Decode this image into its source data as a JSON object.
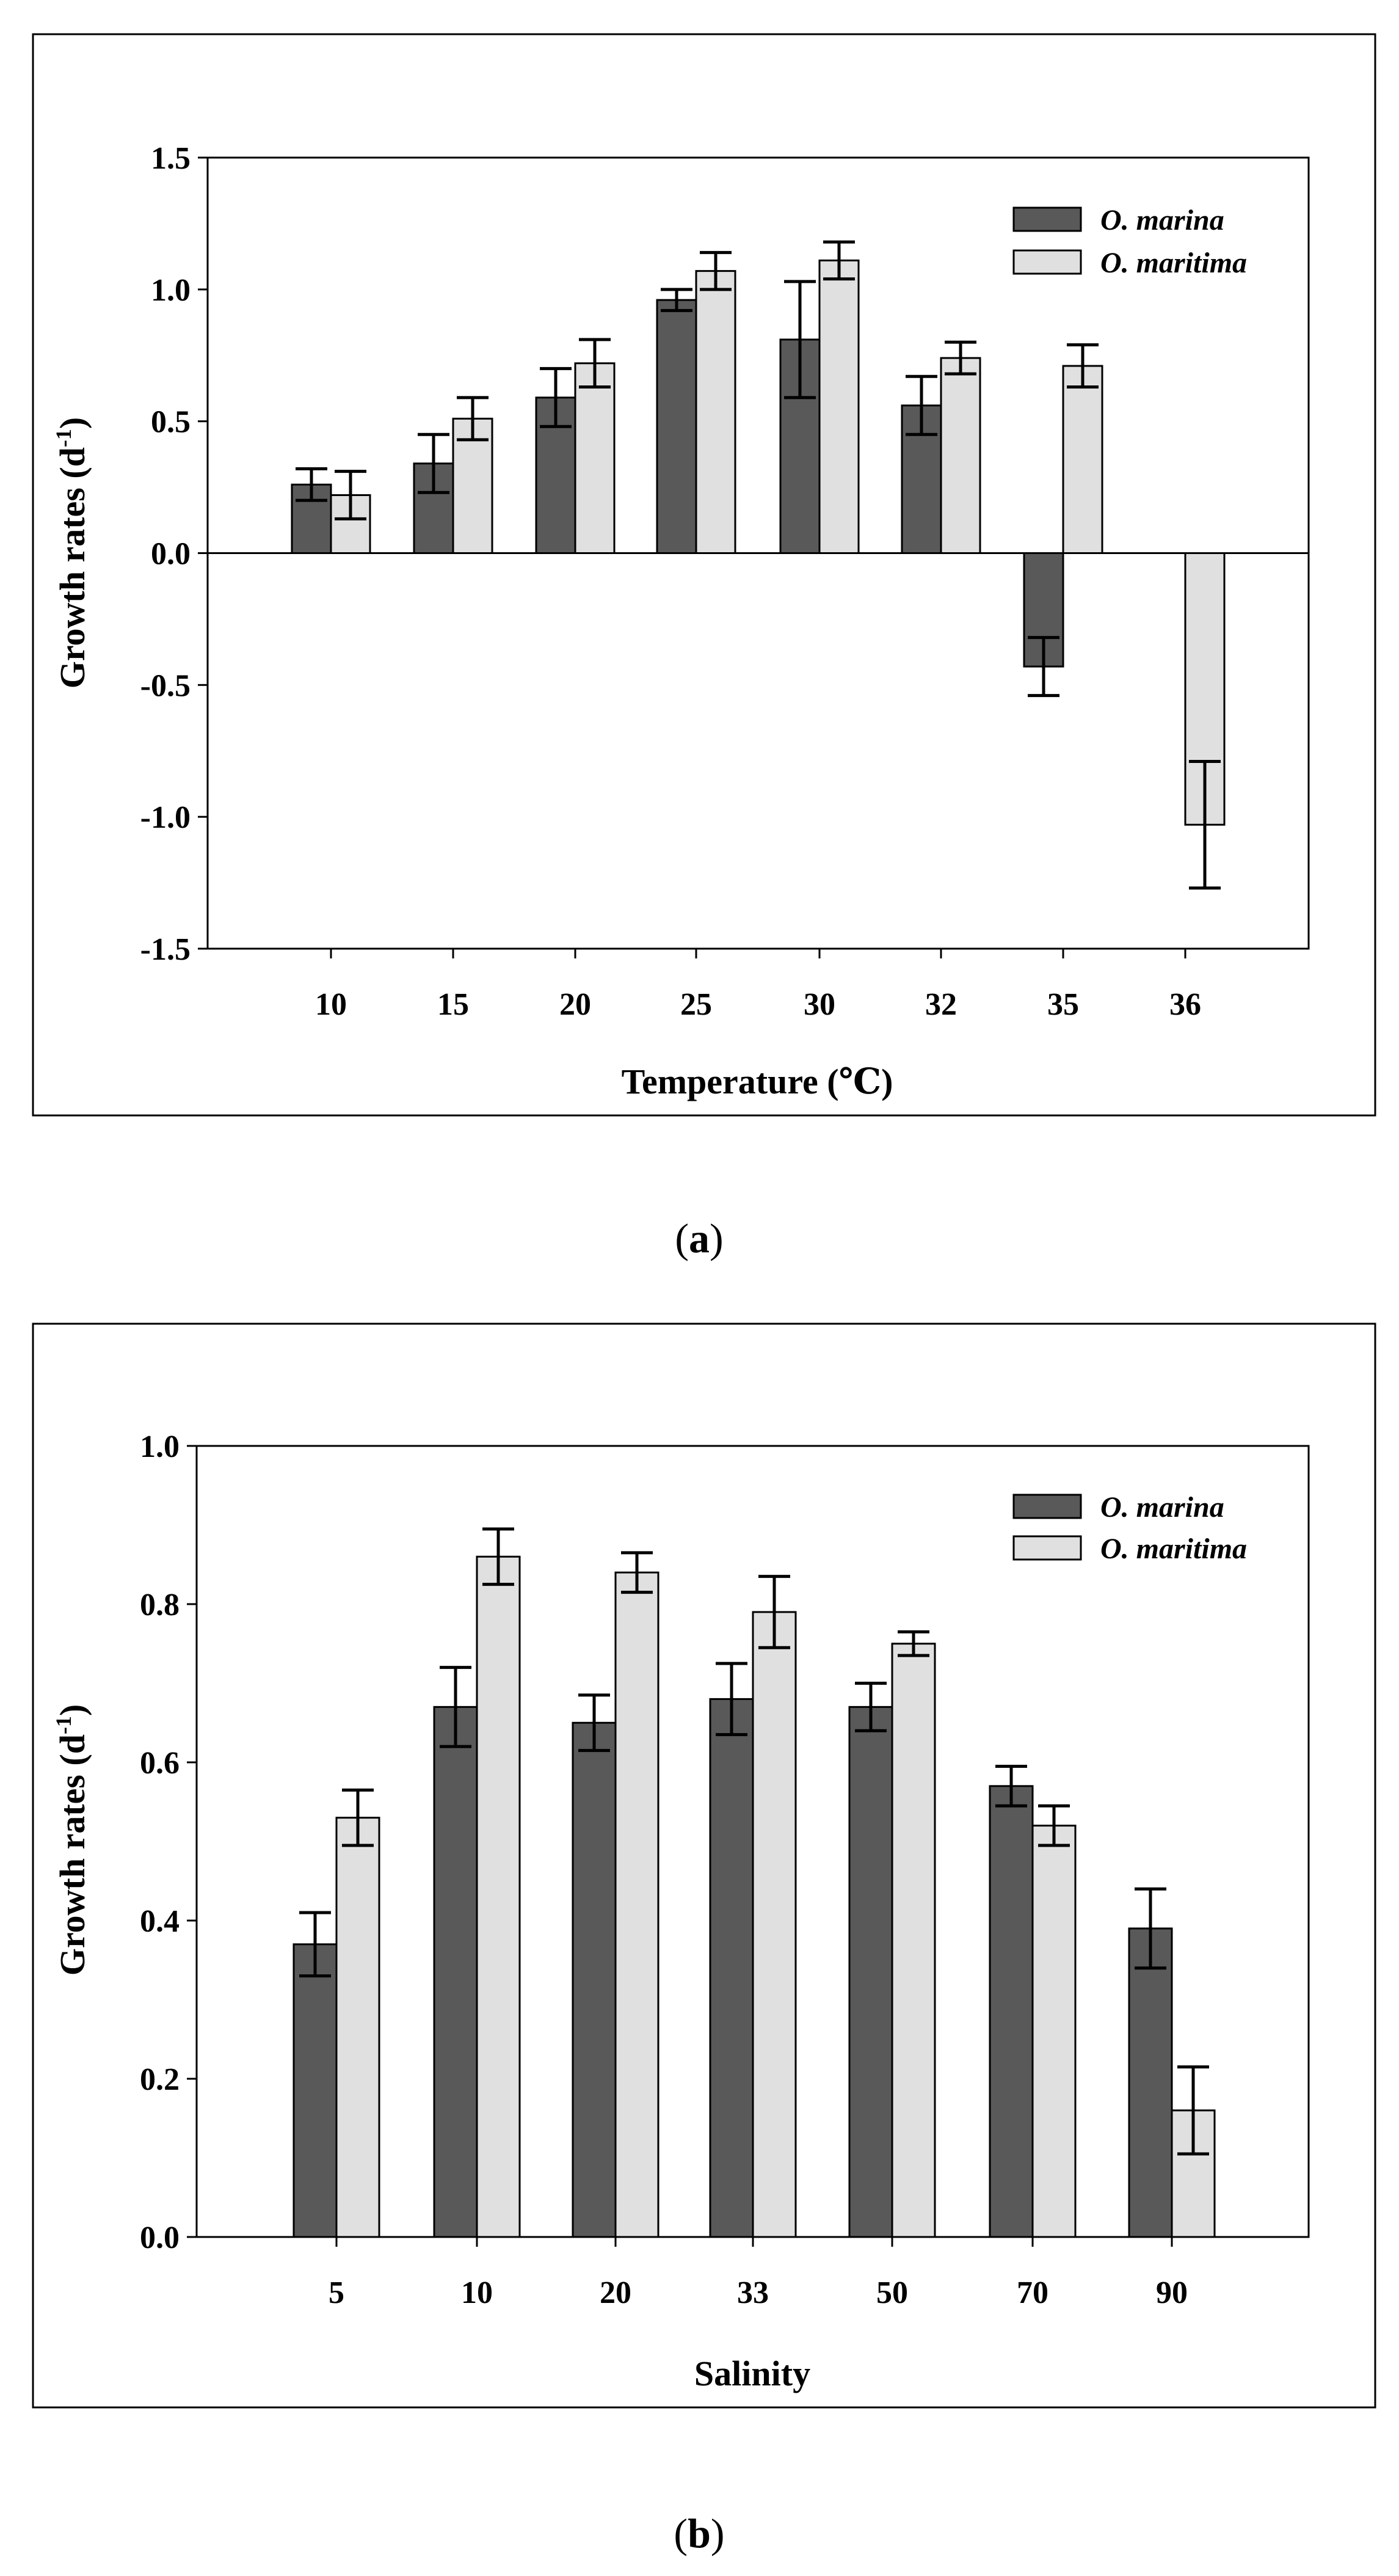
{
  "colors": {
    "series1": "#595959",
    "series2": "#e0e0e0",
    "edge": "#000000"
  },
  "chart_data": [
    {
      "type": "bar",
      "panel": "a",
      "categories": [
        "10",
        "15",
        "20",
        "25",
        "30",
        "32",
        "35",
        "36"
      ],
      "xlabel": "Temperature (℃)",
      "ylabel": "Growth rates (d",
      "ylabel_sup": "-1",
      "ylabel_end": ")",
      "ylim": [
        -1.5,
        1.5
      ],
      "yticks": [
        -1.5,
        -1.0,
        -0.5,
        0.0,
        0.5,
        1.0,
        1.5
      ],
      "ytick_labels": [
        "-1.5",
        "-1.0",
        "-0.5",
        "0.0",
        "0.5",
        "1.0",
        "1.5"
      ],
      "legend_position": "top-right",
      "series": [
        {
          "name": "O. marina",
          "values": [
            0.26,
            0.34,
            0.59,
            0.96,
            0.81,
            0.56,
            -0.43,
            null
          ],
          "errors": [
            0.06,
            0.11,
            0.11,
            0.04,
            0.22,
            0.11,
            0.11,
            null
          ]
        },
        {
          "name": "O. maritima",
          "values": [
            0.22,
            0.51,
            0.72,
            1.07,
            1.11,
            0.74,
            0.71,
            -1.03
          ],
          "errors": [
            0.09,
            0.08,
            0.09,
            0.07,
            0.07,
            0.06,
            0.08,
            0.24
          ]
        }
      ]
    },
    {
      "type": "bar",
      "panel": "b",
      "categories": [
        "5",
        "10",
        "20",
        "33",
        "50",
        "70",
        "90"
      ],
      "xlabel": "Salinity",
      "ylabel": "Growth rates (d",
      "ylabel_sup": "-1",
      "ylabel_end": ")",
      "ylim": [
        0.0,
        1.0
      ],
      "yticks": [
        0.0,
        0.2,
        0.4,
        0.6,
        0.8,
        1.0
      ],
      "ytick_labels": [
        "0.0",
        "0.2",
        "0.4",
        "0.6",
        "0.8",
        "1.0"
      ],
      "legend_position": "top-right",
      "series": [
        {
          "name": "O. marina",
          "values": [
            0.37,
            0.67,
            0.65,
            0.68,
            0.67,
            0.57,
            0.39
          ],
          "errors": [
            0.04,
            0.05,
            0.035,
            0.045,
            0.03,
            0.025,
            0.05
          ]
        },
        {
          "name": "O. maritima",
          "values": [
            0.53,
            0.86,
            0.84,
            0.79,
            0.75,
            0.52,
            0.16
          ],
          "errors": [
            0.035,
            0.035,
            0.025,
            0.045,
            0.015,
            0.025,
            0.055
          ]
        }
      ]
    }
  ],
  "labels": {
    "a_open": "(",
    "a": "a",
    "a_close": ")",
    "b_open": "(",
    "b": "b",
    "b_close": ")"
  }
}
